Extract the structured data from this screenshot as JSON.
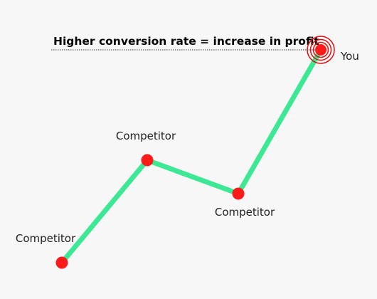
{
  "title": "Higher conversion rate = increase in profit",
  "nodes": [
    {
      "label": "Competitor"
    },
    {
      "label": "Competitor"
    },
    {
      "label": "Competitor"
    },
    {
      "label": "You"
    }
  ]
}
